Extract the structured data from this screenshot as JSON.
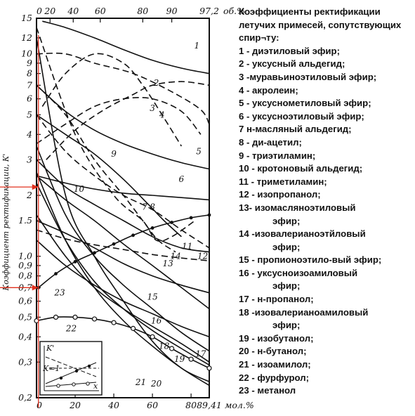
{
  "chart_data": {
    "type": "line",
    "ylabel": "Коэффициент ректификации, К'",
    "y_scale": "log",
    "ylim": [
      0.2,
      15
    ],
    "y_ticks": [
      "15",
      "12",
      "10",
      "9",
      "8",
      "7",
      "6",
      "5",
      "4",
      "3",
      "2",
      "1.5",
      "1,0",
      "0,9",
      "0,8",
      "0,7",
      "0,6",
      "0,5",
      "0,4",
      "0,3",
      "0,2"
    ],
    "top_axis": {
      "unit": "об.%",
      "ticks": [
        "0",
        "20",
        "40",
        "60",
        "80",
        "90",
        "97,2"
      ]
    },
    "bottom_axis": {
      "unit": "мол.%",
      "ticks": [
        "0",
        "20",
        "40",
        "60",
        "80",
        "89,41"
      ]
    },
    "x_tick_values": [
      0,
      20,
      40,
      60,
      80,
      89.41
    ],
    "markers": [
      {
        "x": 1,
        "y": 2.2
      },
      {
        "x": 1,
        "y": 0.7
      }
    ],
    "inset": {
      "ylabel": "K'",
      "xlabel": "x",
      "ref_label": "K=1"
    },
    "series": [
      {
        "name": "1",
        "x": [
          3,
          15,
          30,
          45,
          60,
          75,
          89.41
        ],
        "y": [
          14.5,
          13.5,
          12,
          10.5,
          9.3,
          8.5,
          8
        ]
      },
      {
        "name": "2",
        "x": [
          5,
          20,
          35,
          50,
          60,
          75,
          89.41
        ],
        "y": [
          3,
          4.2,
          5.3,
          6.3,
          7,
          7.3,
          7
        ]
      },
      {
        "name": "3",
        "x": [
          3,
          15,
          30,
          45,
          55,
          65,
          75
        ],
        "y": [
          5.5,
          8,
          10,
          9,
          7,
          5,
          3.5
        ]
      },
      {
        "name": "4",
        "x": [
          0,
          15,
          30,
          45,
          60,
          75,
          85
        ],
        "y": [
          3.6,
          4.5,
          5.5,
          6,
          6,
          5.2,
          4
        ]
      },
      {
        "name": "5",
        "x": [
          0,
          15,
          30,
          50,
          70,
          85,
          89.41
        ],
        "y": [
          10,
          10,
          9,
          8,
          6.5,
          5.3,
          4.5
        ]
      },
      {
        "name": "6",
        "x": [
          0,
          15,
          30,
          45,
          60,
          75,
          89.41
        ],
        "y": [
          7,
          5.2,
          4.2,
          3.6,
          3.2,
          2.9,
          2.7
        ]
      },
      {
        "name": "7",
        "x": [
          0,
          15,
          30,
          45,
          55,
          63,
          72
        ],
        "y": [
          7,
          5,
          3,
          2,
          1.5,
          1.2,
          1.05
        ]
      },
      {
        "name": "8",
        "x": [
          0,
          15,
          30,
          45,
          58,
          66,
          75
        ],
        "y": [
          5,
          4,
          3.2,
          2.4,
          1.8,
          1.5,
          1.25
        ]
      },
      {
        "name": "9",
        "x": [
          0,
          20,
          40,
          55,
          62,
          70,
          82
        ],
        "y": [
          13.5,
          4,
          2,
          1.5,
          1.2,
          1.25,
          1.5
        ]
      },
      {
        "name": "10",
        "x": [
          0,
          15,
          30,
          45,
          60,
          75,
          89.41
        ],
        "y": [
          3,
          2.2,
          1.8,
          1.5,
          1.25,
          1.1,
          1.05
        ]
      },
      {
        "name": "11",
        "x": [
          0,
          15,
          30,
          45,
          60,
          75,
          89.41
        ],
        "y": [
          5,
          3.3,
          2.5,
          2,
          1.7,
          1.35,
          1.1
        ]
      },
      {
        "name": "12",
        "x": [
          0,
          15,
          30,
          45,
          60,
          75,
          89.41
        ],
        "y": [
          2.5,
          2.3,
          2.15,
          2.05,
          2,
          1.95,
          1.9
        ]
      },
      {
        "name": "13",
        "x": [
          0,
          15,
          30,
          45,
          60,
          75,
          89.41
        ],
        "y": [
          1.35,
          1.22,
          1.14,
          1.08,
          1.02,
          0.98,
          0.95
        ]
      },
      {
        "name": "14",
        "x": [
          0,
          15,
          30,
          45,
          60,
          75,
          89.41
        ],
        "y": [
          2.5,
          1.9,
          1.5,
          1.15,
          0.9,
          0.7,
          0.55
        ]
      },
      {
        "name": "15",
        "x": [
          0,
          15,
          30,
          45,
          60,
          75,
          89.41
        ],
        "y": [
          1.5,
          1.3,
          1.1,
          0.92,
          0.8,
          0.72,
          0.66
        ]
      },
      {
        "name": "16",
        "x": [
          0,
          15,
          30,
          45,
          60,
          75,
          89.41
        ],
        "y": [
          1.2,
          0.9,
          0.72,
          0.6,
          0.52,
          0.45,
          0.4
        ]
      },
      {
        "name": "17",
        "x": [
          0,
          15,
          30,
          45,
          60,
          75,
          89.41
        ],
        "y": [
          3.5,
          1.6,
          1,
          0.72,
          0.55,
          0.42,
          0.34
        ]
      },
      {
        "name": "18",
        "x": [
          0,
          15,
          30,
          45,
          60,
          75,
          89.41
        ],
        "y": [
          1.6,
          1,
          0.7,
          0.55,
          0.45,
          0.37,
          0.3
        ]
      },
      {
        "name": "19",
        "x": [
          0,
          15,
          30,
          45,
          60,
          75,
          89.41
        ],
        "y": [
          2.3,
          1.2,
          0.75,
          0.55,
          0.43,
          0.35,
          0.29
        ]
      },
      {
        "name": "20",
        "x": [
          0,
          15,
          30,
          45,
          60,
          75,
          89.41
        ],
        "y": [
          2.6,
          1.2,
          0.7,
          0.48,
          0.36,
          0.28,
          0.23
        ]
      },
      {
        "name": "21",
        "x": [
          0,
          15,
          30,
          45,
          60,
          75,
          89.41
        ],
        "y": [
          12,
          2,
          1,
          0.6,
          0.38,
          0.28,
          0.24
        ]
      },
      {
        "name": "22",
        "x": [
          0,
          10,
          20,
          30,
          40,
          50,
          60,
          70,
          80,
          89.41
        ],
        "y": [
          0.48,
          0.5,
          0.5,
          0.49,
          0.47,
          0.44,
          0.4,
          0.35,
          0.31,
          0.28
        ]
      },
      {
        "name": "23",
        "x": [
          1,
          10,
          20,
          30,
          40,
          50,
          60,
          70,
          80,
          89.41
        ],
        "y": [
          0.7,
          0.82,
          0.94,
          1.04,
          1.15,
          1.27,
          1.38,
          1.47,
          1.55,
          1.6
        ]
      }
    ]
  },
  "legend": {
    "title": "Коэффициенты ректификации летучих примесей, сопутствующих спир¬ту:",
    "items": [
      "1 - диэтиловый эфир;",
      " 2 - уксусный альдегид;",
      "3 -муравьиноэтиловый эфир;",
      "4 - акролеин;",
      "5 - уксусноме­тиловый эфир;",
      "6 - уксусноэтиловый эфир;",
      "7 н-масляный альдегид;",
      "8 - ди-ацетил;",
      "9 - триэтиламин;",
      "10 - кротоновый альдегид;",
      "11 - триметиламин;",
      "12 - изопропанол;",
      "13- изомасляноэтиловый",
      "эфир;",
      "14 -изовалерианоэтйловый",
      "эфир;",
      "15 - пропионоэтило-вый эфир;",
      "16 - уксусноизоамиловый",
      "эфир;",
      "17 - н-пропанол;",
      "18 -изовалерианоамиловый",
      "эфир;",
      "19 - изобутанол;",
      "20 - н-бутанол;",
      "21 - изоамилол;",
      "22 - фурфурол;",
      "23 - метанол"
    ]
  }
}
